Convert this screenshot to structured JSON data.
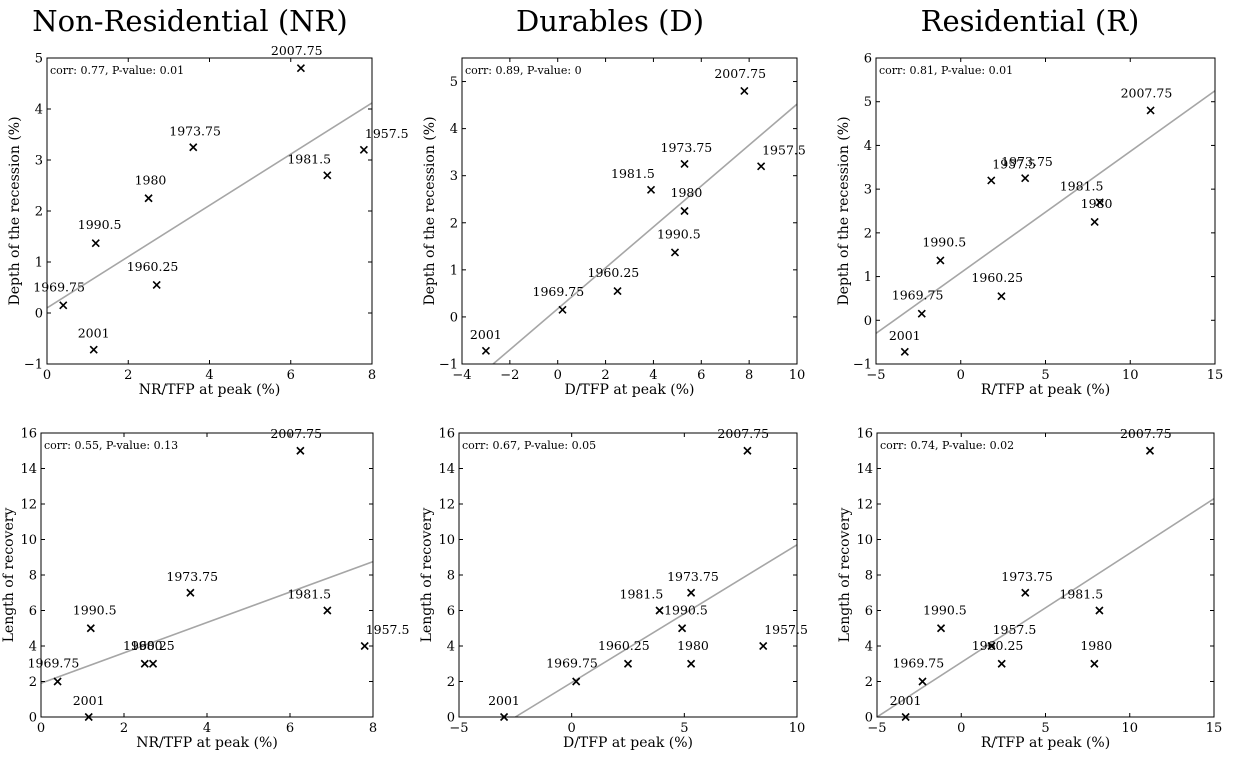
{
  "column_titles": [
    "Non-Residential (NR)",
    "Durables (D)",
    "Residential (R)"
  ],
  "chart_data": [
    {
      "type": "scatter",
      "title": "Non-Residential (NR)",
      "xlabel": "NR/TFP at peak (%)",
      "ylabel": "Depth of the recession (%)",
      "xlim": [
        0,
        8
      ],
      "ylim": [
        -1,
        5
      ],
      "xticks": [
        0,
        2,
        4,
        6,
        8
      ],
      "yticks": [
        -1,
        0,
        1,
        2,
        3,
        4,
        5
      ],
      "annotation": "corr: 0.77, P-value: 0.01",
      "points": [
        {
          "label": "1957.5",
          "x": 7.8,
          "y": 3.2
        },
        {
          "label": "1960.25",
          "x": 2.7,
          "y": 0.55
        },
        {
          "label": "1969.75",
          "x": 0.4,
          "y": 0.15
        },
        {
          "label": "1973.75",
          "x": 3.6,
          "y": 3.25
        },
        {
          "label": "1980",
          "x": 2.5,
          "y": 2.25
        },
        {
          "label": "1981.5",
          "x": 6.9,
          "y": 2.7
        },
        {
          "label": "1990.5",
          "x": 1.2,
          "y": 1.37
        },
        {
          "label": "2001",
          "x": 1.15,
          "y": -0.72
        },
        {
          "label": "2007.75",
          "x": 6.25,
          "y": 4.8
        }
      ],
      "fit_line": {
        "x": [
          0,
          8
        ],
        "y": [
          0.1,
          4.12
        ]
      }
    },
    {
      "type": "scatter",
      "title": "Durables (D)",
      "xlabel": "D/TFP at peak (%)",
      "ylabel": "Depth of the recession (%)",
      "xlim": [
        -4,
        10
      ],
      "ylim": [
        -1,
        5.5
      ],
      "xticks": [
        -4,
        -2,
        0,
        2,
        4,
        6,
        8,
        10
      ],
      "yticks": [
        -1,
        0,
        1,
        2,
        3,
        4,
        5
      ],
      "annotation": "corr: 0.89, P-value: 0",
      "points": [
        {
          "label": "1957.5",
          "x": 8.5,
          "y": 3.2
        },
        {
          "label": "1960.25",
          "x": 2.5,
          "y": 0.55
        },
        {
          "label": "1969.75",
          "x": 0.2,
          "y": 0.15
        },
        {
          "label": "1973.75",
          "x": 5.3,
          "y": 3.25
        },
        {
          "label": "1980",
          "x": 5.3,
          "y": 2.25
        },
        {
          "label": "1981.5",
          "x": 3.9,
          "y": 2.7
        },
        {
          "label": "1990.5",
          "x": 4.9,
          "y": 1.37
        },
        {
          "label": "2001",
          "x": -3.0,
          "y": -0.72
        },
        {
          "label": "2007.75",
          "x": 7.8,
          "y": 4.8
        }
      ],
      "fit_line": {
        "x": [
          -2.7,
          10
        ],
        "y": [
          -1,
          4.52
        ]
      }
    },
    {
      "type": "scatter",
      "title": "Residential (R)",
      "xlabel": "R/TFP at peak (%)",
      "ylabel": "Depth of the recession (%)",
      "xlim": [
        -5,
        15
      ],
      "ylim": [
        -1,
        6
      ],
      "xticks": [
        -5,
        0,
        5,
        10,
        15
      ],
      "yticks": [
        -1,
        0,
        1,
        2,
        3,
        4,
        5,
        6
      ],
      "annotation": "corr: 0.81, P-value: 0.01",
      "points": [
        {
          "label": "1957.5",
          "x": 1.8,
          "y": 3.2
        },
        {
          "label": "1960.25",
          "x": 2.4,
          "y": 0.55
        },
        {
          "label": "1969.75",
          "x": -2.3,
          "y": 0.15
        },
        {
          "label": "1973.75",
          "x": 3.8,
          "y": 3.25
        },
        {
          "label": "1980",
          "x": 7.9,
          "y": 2.25
        },
        {
          "label": "1981.5",
          "x": 8.2,
          "y": 2.7
        },
        {
          "label": "1990.5",
          "x": -1.2,
          "y": 1.37
        },
        {
          "label": "2001",
          "x": -3.3,
          "y": -0.72
        },
        {
          "label": "2007.75",
          "x": 11.2,
          "y": 4.8
        }
      ],
      "fit_line": {
        "x": [
          -5,
          15
        ],
        "y": [
          -0.3,
          5.25
        ]
      }
    },
    {
      "type": "scatter",
      "xlabel": "NR/TFP at peak (%)",
      "ylabel": "Length of recovery",
      "xlim": [
        0,
        8
      ],
      "ylim": [
        0,
        16
      ],
      "xticks": [
        0,
        2,
        4,
        6,
        8
      ],
      "yticks": [
        0,
        2,
        4,
        6,
        8,
        10,
        12,
        14,
        16
      ],
      "annotation": "corr: 0.55, P-value: 0.13",
      "points": [
        {
          "label": "1957.5",
          "x": 7.8,
          "y": 4
        },
        {
          "label": "1960.25",
          "x": 2.7,
          "y": 3
        },
        {
          "label": "1969.75",
          "x": 0.4,
          "y": 2
        },
        {
          "label": "1973.75",
          "x": 3.6,
          "y": 7
        },
        {
          "label": "1980",
          "x": 2.5,
          "y": 3
        },
        {
          "label": "1981.5",
          "x": 6.9,
          "y": 6
        },
        {
          "label": "1990.5",
          "x": 1.2,
          "y": 5
        },
        {
          "label": "2001",
          "x": 1.15,
          "y": 0
        },
        {
          "label": "2007.75",
          "x": 6.25,
          "y": 15
        }
      ],
      "fit_line": {
        "x": [
          0,
          8
        ],
        "y": [
          1.9,
          8.75
        ]
      }
    },
    {
      "type": "scatter",
      "xlabel": "D/TFP at peak (%)",
      "ylabel": "Length of recovery",
      "xlim": [
        -5,
        10
      ],
      "ylim": [
        0,
        16
      ],
      "xticks": [
        -5,
        0,
        5,
        10
      ],
      "yticks": [
        0,
        2,
        4,
        6,
        8,
        10,
        12,
        14,
        16
      ],
      "annotation": "corr: 0.67, P-value: 0.05",
      "points": [
        {
          "label": "1957.5",
          "x": 8.5,
          "y": 4
        },
        {
          "label": "1960.25",
          "x": 2.5,
          "y": 3
        },
        {
          "label": "1969.75",
          "x": 0.2,
          "y": 2
        },
        {
          "label": "1973.75",
          "x": 5.3,
          "y": 7
        },
        {
          "label": "1980",
          "x": 5.3,
          "y": 3
        },
        {
          "label": "1981.5",
          "x": 3.9,
          "y": 6
        },
        {
          "label": "1990.5",
          "x": 4.9,
          "y": 5
        },
        {
          "label": "2001",
          "x": -3.0,
          "y": 0
        },
        {
          "label": "2007.75",
          "x": 7.8,
          "y": 15
        }
      ],
      "fit_line": {
        "x": [
          -2.5,
          10
        ],
        "y": [
          0,
          9.7
        ]
      }
    },
    {
      "type": "scatter",
      "xlabel": "R/TFP at peak (%)",
      "ylabel": "Length of recovery",
      "xlim": [
        -5,
        15
      ],
      "ylim": [
        0,
        16
      ],
      "xticks": [
        -5,
        0,
        5,
        10,
        15
      ],
      "yticks": [
        0,
        2,
        4,
        6,
        8,
        10,
        12,
        14,
        16
      ],
      "annotation": "corr: 0.74, P-value: 0.02",
      "points": [
        {
          "label": "1957.5",
          "x": 1.8,
          "y": 4
        },
        {
          "label": "1960.25",
          "x": 2.4,
          "y": 3
        },
        {
          "label": "1969.75",
          "x": -2.3,
          "y": 2
        },
        {
          "label": "1973.75",
          "x": 3.8,
          "y": 7
        },
        {
          "label": "1980",
          "x": 7.9,
          "y": 3
        },
        {
          "label": "1981.5",
          "x": 8.2,
          "y": 6
        },
        {
          "label": "1990.5",
          "x": -1.2,
          "y": 5
        },
        {
          "label": "2001",
          "x": -3.3,
          "y": 0
        },
        {
          "label": "2007.75",
          "x": 11.2,
          "y": 15
        }
      ],
      "fit_line": {
        "x": [
          -5,
          15
        ],
        "y": [
          0,
          12.3
        ]
      }
    }
  ]
}
